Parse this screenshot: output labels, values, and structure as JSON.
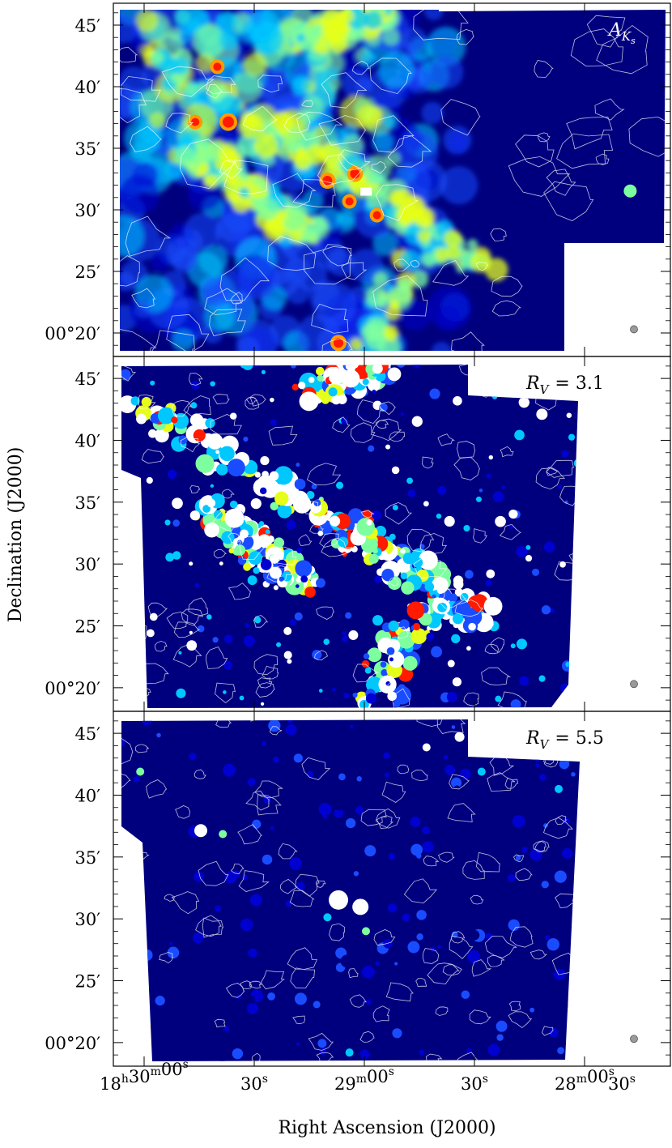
{
  "chart_data": [
    {
      "type": "heatmap",
      "panel_label": {
        "main": "A",
        "sub": "K",
        "subsub": "s"
      },
      "label_color": "#ffffff",
      "xlabel": "Right Ascension (J2000)",
      "ylabel": "Declination (J2000)",
      "ytick_labels": [
        "45′",
        "40′",
        "35′",
        "30′",
        "25′",
        "00°20′"
      ],
      "ytick_values_arcmin": [
        45,
        40,
        35,
        30,
        25,
        20
      ],
      "ylim_arcmin": [
        17.3,
        46.7
      ],
      "colormap": [
        "#00007f",
        "#0000d0",
        "#1a4cff",
        "#00c8ff",
        "#7dffa0",
        "#e6ff1a",
        "#ff9a00",
        "#ff1a00",
        "#ffffff"
      ],
      "beam_marker": "gray circle",
      "style": "filamentary"
    },
    {
      "type": "heatmap",
      "panel_label": {
        "main": "R",
        "sub": "V",
        "value": "= 3.1"
      },
      "label_color": "#000000",
      "ytick_labels": [
        "45′",
        "40′",
        "35′",
        "30′",
        "25′",
        "00°20′"
      ],
      "ytick_values_arcmin": [
        45,
        40,
        35,
        30,
        25,
        20
      ],
      "ylim_arcmin": [
        17.3,
        46.7
      ],
      "beam_marker": "gray circle",
      "style": "saturated"
    },
    {
      "type": "heatmap",
      "panel_label": {
        "main": "R",
        "sub": "V",
        "value": "= 5.5"
      },
      "label_color": "#000000",
      "ytick_labels": [
        "45′",
        "40′",
        "35′",
        "30′",
        "25′",
        "00°20′"
      ],
      "ytick_values_arcmin": [
        45,
        40,
        35,
        30,
        25,
        20
      ],
      "ylim_arcmin": [
        17.3,
        46.7
      ],
      "xtick_labels": [
        {
          "h": "18",
          "hs": "h",
          "m": "30",
          "ms": "m",
          "s": "00",
          "ss": "s"
        },
        {
          "s": "30",
          "ss": "s"
        },
        {
          "m": "29",
          "ms": "m",
          "s": "00",
          "ss": "s"
        },
        {
          "s": "30",
          "ss": "s"
        },
        {
          "m": "28",
          "ms": "m",
          "s": "00",
          "ss": "s"
        },
        {
          "s": "30",
          "ss": "s"
        }
      ],
      "beam_marker": "gray circle",
      "style": "low"
    }
  ]
}
